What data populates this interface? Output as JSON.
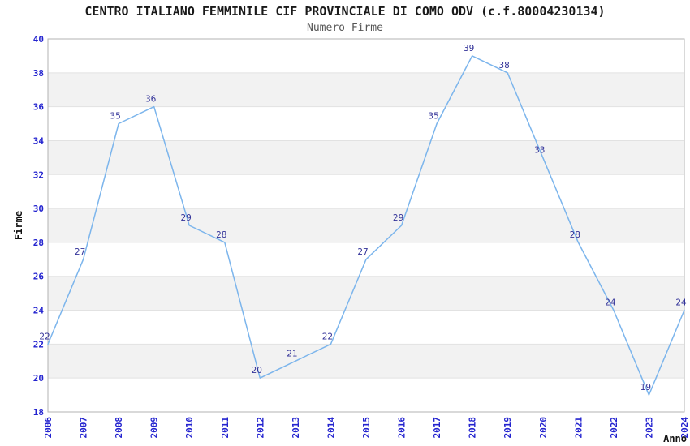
{
  "header": {
    "title": "CENTRO ITALIANO FEMMINILE CIF PROVINCIALE DI COMO ODV (c.f.80004230134)",
    "subtitle": "Numero Firme"
  },
  "chart_data": {
    "type": "line",
    "title": "CENTRO ITALIANO FEMMINILE CIF PROVINCIALE DI COMO ODV (c.f.80004230134)",
    "subtitle": "Numero Firme",
    "x": [
      2006,
      2007,
      2008,
      2009,
      2010,
      2011,
      2012,
      2013,
      2014,
      2015,
      2016,
      2017,
      2018,
      2019,
      2020,
      2021,
      2022,
      2023,
      2024
    ],
    "values": [
      22,
      27,
      35,
      36,
      29,
      28,
      20,
      21,
      22,
      27,
      29,
      35,
      39,
      38,
      33,
      28,
      24,
      19,
      24
    ],
    "xlabel": "Anno",
    "ylabel": "Firme",
    "ylim": [
      18,
      40
    ],
    "ytick_step": 2,
    "grid": "horizontal-only",
    "legend": "none",
    "data_labels_visible": true,
    "colors": {
      "line": "#7cb5ec",
      "band": "#f2f2f2",
      "gridline": "#e2e2e2",
      "plot_border": "#b3b3b3",
      "tick_label": "#2323cf",
      "data_label": "#333399",
      "title": "#1a1a1a",
      "subtitle": "#555555"
    }
  }
}
